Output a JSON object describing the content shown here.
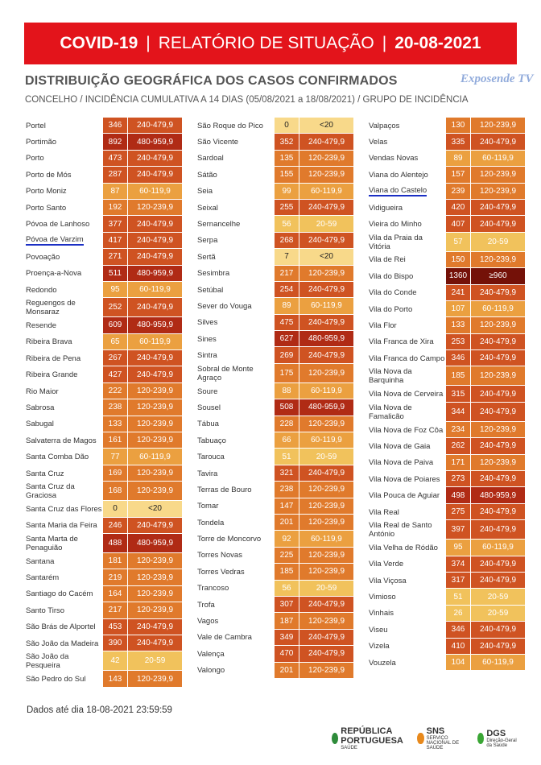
{
  "header": {
    "title_parts": [
      "COVID-19",
      "|",
      "RELATÓRIO DE SITUAÇÃO",
      "|",
      "20-08-2021"
    ],
    "subtitle": "DISTRIBUIÇÃO GEOGRÁFICA DOS CASOS CONFIRMADOS",
    "description": "CONCELHO / INCIDÊNCIA CUMULATIVA A 14 DIAS (05/08/2021 a 18/08/2021) / GRUPO DE INCIDÊNCIA",
    "watermark": "Exposende TV"
  },
  "group_colors": {
    "<20": {
      "fill": "#f8d98a",
      "text": "#222"
    },
    "20-59": {
      "fill": "#f1c25c",
      "text": "#fff"
    },
    "60-119,9": {
      "fill": "#eba040",
      "text": "#fff"
    },
    "120-239,9": {
      "fill": "#e07a2c",
      "text": "#fff"
    },
    "240-479,9": {
      "fill": "#cf5322",
      "text": "#fff"
    },
    "480-959,9": {
      "fill": "#b02b15",
      "text": "#fff"
    },
    "≥960": {
      "fill": "#741108",
      "text": "#fff"
    }
  },
  "table": {
    "columns": [
      {
        "rows": [
          {
            "name": "Portel",
            "incidence": 346,
            "group": "240-479,9"
          },
          {
            "name": "Portimão",
            "incidence": 892,
            "group": "480-959,9"
          },
          {
            "name": "Porto",
            "incidence": 473,
            "group": "240-479,9"
          },
          {
            "name": "Porto de Mós",
            "incidence": 287,
            "group": "240-479,9"
          },
          {
            "name": "Porto Moniz",
            "incidence": 87,
            "group": "60-119,9"
          },
          {
            "name": "Porto Santo",
            "incidence": 192,
            "group": "120-239,9"
          },
          {
            "name": "Póvoa de Lanhoso",
            "incidence": 377,
            "group": "240-479,9"
          },
          {
            "name": "Póvoa de Varzim",
            "incidence": 417,
            "group": "240-479,9",
            "underlined": true
          },
          {
            "name": "Povoação",
            "incidence": 271,
            "group": "240-479,9"
          },
          {
            "name": "Proença-a-Nova",
            "incidence": 511,
            "group": "480-959,9"
          },
          {
            "name": "Redondo",
            "incidence": 95,
            "group": "60-119,9"
          },
          {
            "name": "Reguengos de Monsaraz",
            "incidence": 252,
            "group": "240-479,9"
          },
          {
            "name": "Resende",
            "incidence": 609,
            "group": "480-959,9"
          },
          {
            "name": "Ribeira Brava",
            "incidence": 65,
            "group": "60-119,9"
          },
          {
            "name": "Ribeira de Pena",
            "incidence": 267,
            "group": "240-479,9"
          },
          {
            "name": "Ribeira Grande",
            "incidence": 427,
            "group": "240-479,9"
          },
          {
            "name": "Rio Maior",
            "incidence": 222,
            "group": "120-239,9"
          },
          {
            "name": "Sabrosa",
            "incidence": 238,
            "group": "120-239,9"
          },
          {
            "name": "Sabugal",
            "incidence": 133,
            "group": "120-239,9"
          },
          {
            "name": "Salvaterra de Magos",
            "incidence": 161,
            "group": "120-239,9"
          },
          {
            "name": "Santa Comba Dão",
            "incidence": 77,
            "group": "60-119,9"
          },
          {
            "name": "Santa Cruz",
            "incidence": 169,
            "group": "120-239,9"
          },
          {
            "name": "Santa Cruz da Graciosa",
            "incidence": 168,
            "group": "120-239,9"
          },
          {
            "name": "Santa Cruz das Flores",
            "incidence": 0,
            "group": "<20"
          },
          {
            "name": "Santa Maria da Feira",
            "incidence": 246,
            "group": "240-479,9"
          },
          {
            "name": "Santa Marta de Penaguião",
            "incidence": 488,
            "group": "480-959,9"
          },
          {
            "name": "Santana",
            "incidence": 181,
            "group": "120-239,9"
          },
          {
            "name": "Santarém",
            "incidence": 219,
            "group": "120-239,9"
          },
          {
            "name": "Santiago do Cacém",
            "incidence": 164,
            "group": "120-239,9"
          },
          {
            "name": "Santo Tirso",
            "incidence": 217,
            "group": "120-239,9"
          },
          {
            "name": "São Brás de Alportel",
            "incidence": 453,
            "group": "240-479,9"
          },
          {
            "name": "São João da Madeira",
            "incidence": 390,
            "group": "240-479,9"
          },
          {
            "name": "São João da Pesqueira",
            "incidence": 42,
            "group": "20-59"
          },
          {
            "name": "São Pedro do Sul",
            "incidence": 143,
            "group": "120-239,9"
          }
        ]
      },
      {
        "rows": [
          {
            "name": "São Roque do Pico",
            "incidence": 0,
            "group": "<20"
          },
          {
            "name": "São Vicente",
            "incidence": 352,
            "group": "240-479,9"
          },
          {
            "name": "Sardoal",
            "incidence": 135,
            "group": "120-239,9"
          },
          {
            "name": "Sátão",
            "incidence": 155,
            "group": "120-239,9"
          },
          {
            "name": "Seia",
            "incidence": 99,
            "group": "60-119,9"
          },
          {
            "name": "Seixal",
            "incidence": 255,
            "group": "240-479,9"
          },
          {
            "name": "Sernancelhe",
            "incidence": 56,
            "group": "20-59"
          },
          {
            "name": "Serpa",
            "incidence": 268,
            "group": "240-479,9"
          },
          {
            "name": "Sertã",
            "incidence": 7,
            "group": "<20"
          },
          {
            "name": "Sesimbra",
            "incidence": 217,
            "group": "120-239,9"
          },
          {
            "name": "Setúbal",
            "incidence": 254,
            "group": "240-479,9"
          },
          {
            "name": "Sever do Vouga",
            "incidence": 89,
            "group": "60-119,9"
          },
          {
            "name": "Silves",
            "incidence": 475,
            "group": "240-479,9"
          },
          {
            "name": "Sines",
            "incidence": 627,
            "group": "480-959,9"
          },
          {
            "name": "Sintra",
            "incidence": 269,
            "group": "240-479,9"
          },
          {
            "name": "Sobral de Monte Agraço",
            "incidence": 175,
            "group": "120-239,9"
          },
          {
            "name": "Soure",
            "incidence": 88,
            "group": "60-119,9"
          },
          {
            "name": "Sousel",
            "incidence": 508,
            "group": "480-959,9"
          },
          {
            "name": "Tábua",
            "incidence": 228,
            "group": "120-239,9"
          },
          {
            "name": "Tabuaço",
            "incidence": 66,
            "group": "60-119,9"
          },
          {
            "name": "Tarouca",
            "incidence": 51,
            "group": "20-59"
          },
          {
            "name": "Tavira",
            "incidence": 321,
            "group": "240-479,9"
          },
          {
            "name": "Terras de Bouro",
            "incidence": 238,
            "group": "120-239,9"
          },
          {
            "name": "Tomar",
            "incidence": 147,
            "group": "120-239,9"
          },
          {
            "name": "Tondela",
            "incidence": 201,
            "group": "120-239,9"
          },
          {
            "name": "Torre de Moncorvo",
            "incidence": 92,
            "group": "60-119,9"
          },
          {
            "name": "Torres Novas",
            "incidence": 225,
            "group": "120-239,9"
          },
          {
            "name": "Torres Vedras",
            "incidence": 185,
            "group": "120-239,9"
          },
          {
            "name": "Trancoso",
            "incidence": 56,
            "group": "20-59"
          },
          {
            "name": "Trofa",
            "incidence": 307,
            "group": "240-479,9"
          },
          {
            "name": "Vagos",
            "incidence": 187,
            "group": "120-239,9"
          },
          {
            "name": "Vale de Cambra",
            "incidence": 349,
            "group": "240-479,9"
          },
          {
            "name": "Valença",
            "incidence": 470,
            "group": "240-479,9"
          },
          {
            "name": "Valongo",
            "incidence": 201,
            "group": "120-239,9"
          }
        ]
      },
      {
        "rows": [
          {
            "name": "Valpaços",
            "incidence": 130,
            "group": "120-239,9"
          },
          {
            "name": "Velas",
            "incidence": 335,
            "group": "240-479,9"
          },
          {
            "name": "Vendas Novas",
            "incidence": 89,
            "group": "60-119,9"
          },
          {
            "name": "Viana do Alentejo",
            "incidence": 157,
            "group": "120-239,9"
          },
          {
            "name": "Viana do Castelo",
            "incidence": 239,
            "group": "120-239,9",
            "underlined": true
          },
          {
            "name": "Vidigueira",
            "incidence": 420,
            "group": "240-479,9"
          },
          {
            "name": "Vieira do Minho",
            "incidence": 407,
            "group": "240-479,9"
          },
          {
            "name": "Vila da Praia da Vitória",
            "incidence": 57,
            "group": "20-59"
          },
          {
            "name": "Vila de Rei",
            "incidence": 150,
            "group": "120-239,9"
          },
          {
            "name": "Vila do Bispo",
            "incidence": 1360,
            "group": "≥960"
          },
          {
            "name": "Vila do Conde",
            "incidence": 241,
            "group": "240-479,9"
          },
          {
            "name": "Vila do Porto",
            "incidence": 107,
            "group": "60-119,9"
          },
          {
            "name": "Vila Flor",
            "incidence": 133,
            "group": "120-239,9"
          },
          {
            "name": "Vila Franca de Xira",
            "incidence": 253,
            "group": "240-479,9"
          },
          {
            "name": "Vila Franca do Campo",
            "incidence": 346,
            "group": "240-479,9"
          },
          {
            "name": "Vila Nova da Barquinha",
            "incidence": 185,
            "group": "120-239,9"
          },
          {
            "name": "Vila Nova de Cerveira",
            "incidence": 315,
            "group": "240-479,9"
          },
          {
            "name": "Vila Nova de Famalicão",
            "incidence": 344,
            "group": "240-479,9"
          },
          {
            "name": "Vila Nova de Foz Côa",
            "incidence": 234,
            "group": "120-239,9"
          },
          {
            "name": "Vila Nova de Gaia",
            "incidence": 262,
            "group": "240-479,9"
          },
          {
            "name": "Vila Nova de Paiva",
            "incidence": 171,
            "group": "120-239,9"
          },
          {
            "name": "Vila Nova de Poiares",
            "incidence": 273,
            "group": "240-479,9"
          },
          {
            "name": "Vila Pouca de Aguiar",
            "incidence": 498,
            "group": "480-959,9"
          },
          {
            "name": "Vila Real",
            "incidence": 275,
            "group": "240-479,9"
          },
          {
            "name": "Vila Real de Santo António",
            "incidence": 397,
            "group": "240-479,9"
          },
          {
            "name": "Vila Velha de Ródão",
            "incidence": 95,
            "group": "60-119,9"
          },
          {
            "name": "Vila Verde",
            "incidence": 374,
            "group": "240-479,9"
          },
          {
            "name": "Vila Viçosa",
            "incidence": 317,
            "group": "240-479,9"
          },
          {
            "name": "Vimioso",
            "incidence": 51,
            "group": "20-59"
          },
          {
            "name": "Vinhais",
            "incidence": 26,
            "group": "20-59"
          },
          {
            "name": "Viseu",
            "incidence": 346,
            "group": "240-479,9"
          },
          {
            "name": "Vizela",
            "incidence": 410,
            "group": "240-479,9"
          },
          {
            "name": "Vouzela",
            "incidence": 104,
            "group": "60-119,9"
          }
        ]
      }
    ]
  },
  "footer": {
    "note": "Dados até dia 18-08-2021 23:59:59",
    "logos": [
      {
        "main": "REPÚBLICA PORTUGUESA",
        "sub": "SAÚDE",
        "color": "#2e8b3a"
      },
      {
        "main": "SNS",
        "sub": "SERVIÇO NACIONAL DE SAÚDE",
        "color": "#e8891c"
      },
      {
        "main": "DGS",
        "sub": "Direção-Geral da Saúde",
        "color": "#3aa635"
      }
    ]
  }
}
